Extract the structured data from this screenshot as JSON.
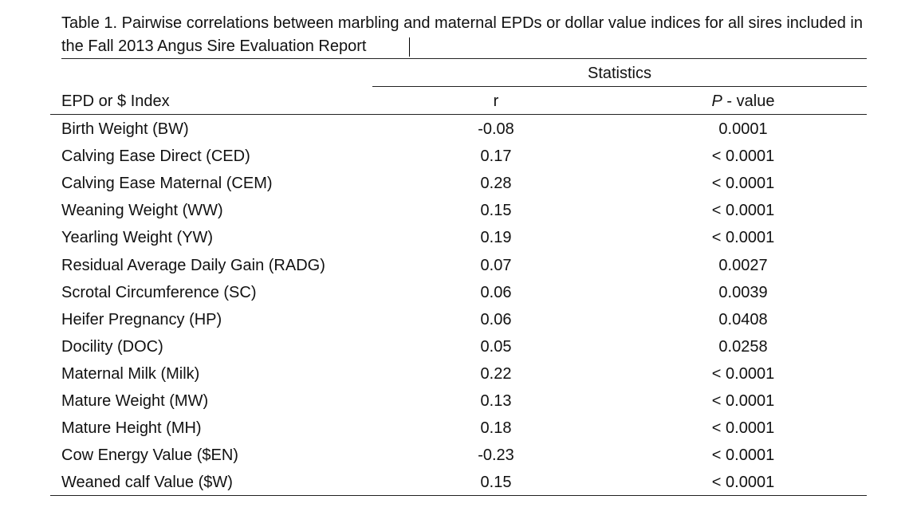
{
  "table": {
    "caption": "Table 1.  Pairwise correlations between marbling and maternal EPDs or dollar value indices for all sires included in the Fall 2013 Angus Sire Evaluation Report",
    "group_header": "Statistics",
    "col_label": "EPD or $ Index",
    "col_r": "r",
    "col_p_italic": "P",
    "col_p_rest": " - value",
    "rows": [
      {
        "label": "Birth Weight (BW)",
        "r": "-0.08",
        "p": "0.0001"
      },
      {
        "label": "Calving Ease Direct (CED)",
        "r": "0.17",
        "p": "< 0.0001"
      },
      {
        "label": "Calving Ease Maternal (CEM)",
        "r": "0.28",
        "p": "< 0.0001"
      },
      {
        "label": "Weaning Weight (WW)",
        "r": "0.15",
        "p": "< 0.0001"
      },
      {
        "label": "Yearling Weight (YW)",
        "r": "0.19",
        "p": "< 0.0001"
      },
      {
        "label": "Residual Average Daily Gain (RADG)",
        "r": "0.07",
        "p": "0.0027"
      },
      {
        "label": "Scrotal Circumference (SC)",
        "r": "0.06",
        "p": "0.0039"
      },
      {
        "label": "Heifer Pregnancy (HP)",
        "r": "0.06",
        "p": "0.0408"
      },
      {
        "label": "Docility (DOC)",
        "r": "0.05",
        "p": "0.0258"
      },
      {
        "label": "Maternal Milk (Milk)",
        "r": "0.22",
        "p": "< 0.0001"
      },
      {
        "label": "Mature Weight (MW)",
        "r": "0.13",
        "p": "< 0.0001"
      },
      {
        "label": "Mature Height (MH)",
        "r": "0.18",
        "p": "< 0.0001"
      },
      {
        "label": "Cow Energy Value ($EN)",
        "r": "-0.23",
        "p": "< 0.0001"
      },
      {
        "label": "Weaned calf Value ($W)",
        "r": "0.15",
        "p": "< 0.0001"
      }
    ]
  }
}
